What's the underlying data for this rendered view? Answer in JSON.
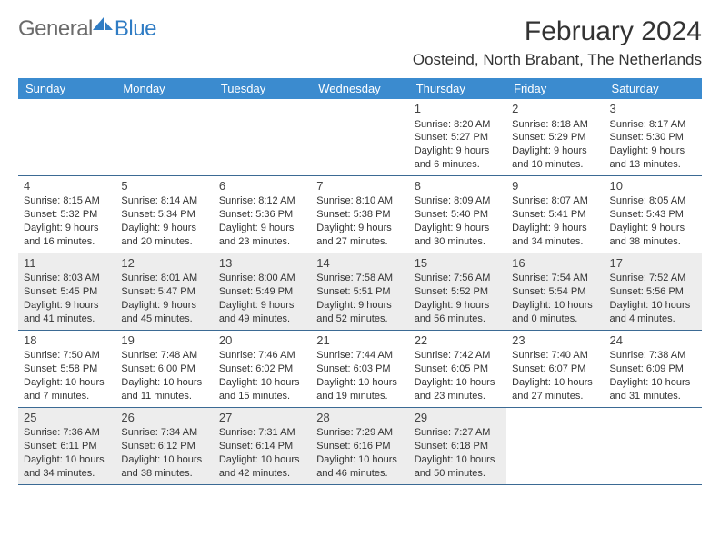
{
  "logo": {
    "text1": "General",
    "text2": "Blue",
    "icon_color": "#2f7cc4"
  },
  "title": "February 2024",
  "location": "Oosteind, North Brabant, The Netherlands",
  "colors": {
    "header_bg": "#3b8bcf",
    "border": "#3b6a94",
    "shade": "#ededed",
    "text": "#333333"
  },
  "days_of_week": [
    "Sunday",
    "Monday",
    "Tuesday",
    "Wednesday",
    "Thursday",
    "Friday",
    "Saturday"
  ],
  "weeks": [
    [
      {
        "empty": true
      },
      {
        "empty": true
      },
      {
        "empty": true
      },
      {
        "empty": true
      },
      {
        "n": "1",
        "sr": "Sunrise: 8:20 AM",
        "ss": "Sunset: 5:27 PM",
        "dl1": "Daylight: 9 hours",
        "dl2": "and 6 minutes."
      },
      {
        "n": "2",
        "sr": "Sunrise: 8:18 AM",
        "ss": "Sunset: 5:29 PM",
        "dl1": "Daylight: 9 hours",
        "dl2": "and 10 minutes."
      },
      {
        "n": "3",
        "sr": "Sunrise: 8:17 AM",
        "ss": "Sunset: 5:30 PM",
        "dl1": "Daylight: 9 hours",
        "dl2": "and 13 minutes."
      }
    ],
    [
      {
        "n": "4",
        "sr": "Sunrise: 8:15 AM",
        "ss": "Sunset: 5:32 PM",
        "dl1": "Daylight: 9 hours",
        "dl2": "and 16 minutes."
      },
      {
        "n": "5",
        "sr": "Sunrise: 8:14 AM",
        "ss": "Sunset: 5:34 PM",
        "dl1": "Daylight: 9 hours",
        "dl2": "and 20 minutes."
      },
      {
        "n": "6",
        "sr": "Sunrise: 8:12 AM",
        "ss": "Sunset: 5:36 PM",
        "dl1": "Daylight: 9 hours",
        "dl2": "and 23 minutes."
      },
      {
        "n": "7",
        "sr": "Sunrise: 8:10 AM",
        "ss": "Sunset: 5:38 PM",
        "dl1": "Daylight: 9 hours",
        "dl2": "and 27 minutes."
      },
      {
        "n": "8",
        "sr": "Sunrise: 8:09 AM",
        "ss": "Sunset: 5:40 PM",
        "dl1": "Daylight: 9 hours",
        "dl2": "and 30 minutes."
      },
      {
        "n": "9",
        "sr": "Sunrise: 8:07 AM",
        "ss": "Sunset: 5:41 PM",
        "dl1": "Daylight: 9 hours",
        "dl2": "and 34 minutes."
      },
      {
        "n": "10",
        "sr": "Sunrise: 8:05 AM",
        "ss": "Sunset: 5:43 PM",
        "dl1": "Daylight: 9 hours",
        "dl2": "and 38 minutes."
      }
    ],
    [
      {
        "n": "11",
        "sr": "Sunrise: 8:03 AM",
        "ss": "Sunset: 5:45 PM",
        "dl1": "Daylight: 9 hours",
        "dl2": "and 41 minutes."
      },
      {
        "n": "12",
        "sr": "Sunrise: 8:01 AM",
        "ss": "Sunset: 5:47 PM",
        "dl1": "Daylight: 9 hours",
        "dl2": "and 45 minutes."
      },
      {
        "n": "13",
        "sr": "Sunrise: 8:00 AM",
        "ss": "Sunset: 5:49 PM",
        "dl1": "Daylight: 9 hours",
        "dl2": "and 49 minutes."
      },
      {
        "n": "14",
        "sr": "Sunrise: 7:58 AM",
        "ss": "Sunset: 5:51 PM",
        "dl1": "Daylight: 9 hours",
        "dl2": "and 52 minutes."
      },
      {
        "n": "15",
        "sr": "Sunrise: 7:56 AM",
        "ss": "Sunset: 5:52 PM",
        "dl1": "Daylight: 9 hours",
        "dl2": "and 56 minutes."
      },
      {
        "n": "16",
        "sr": "Sunrise: 7:54 AM",
        "ss": "Sunset: 5:54 PM",
        "dl1": "Daylight: 10 hours",
        "dl2": "and 0 minutes."
      },
      {
        "n": "17",
        "sr": "Sunrise: 7:52 AM",
        "ss": "Sunset: 5:56 PM",
        "dl1": "Daylight: 10 hours",
        "dl2": "and 4 minutes."
      }
    ],
    [
      {
        "n": "18",
        "sr": "Sunrise: 7:50 AM",
        "ss": "Sunset: 5:58 PM",
        "dl1": "Daylight: 10 hours",
        "dl2": "and 7 minutes."
      },
      {
        "n": "19",
        "sr": "Sunrise: 7:48 AM",
        "ss": "Sunset: 6:00 PM",
        "dl1": "Daylight: 10 hours",
        "dl2": "and 11 minutes."
      },
      {
        "n": "20",
        "sr": "Sunrise: 7:46 AM",
        "ss": "Sunset: 6:02 PM",
        "dl1": "Daylight: 10 hours",
        "dl2": "and 15 minutes."
      },
      {
        "n": "21",
        "sr": "Sunrise: 7:44 AM",
        "ss": "Sunset: 6:03 PM",
        "dl1": "Daylight: 10 hours",
        "dl2": "and 19 minutes."
      },
      {
        "n": "22",
        "sr": "Sunrise: 7:42 AM",
        "ss": "Sunset: 6:05 PM",
        "dl1": "Daylight: 10 hours",
        "dl2": "and 23 minutes."
      },
      {
        "n": "23",
        "sr": "Sunrise: 7:40 AM",
        "ss": "Sunset: 6:07 PM",
        "dl1": "Daylight: 10 hours",
        "dl2": "and 27 minutes."
      },
      {
        "n": "24",
        "sr": "Sunrise: 7:38 AM",
        "ss": "Sunset: 6:09 PM",
        "dl1": "Daylight: 10 hours",
        "dl2": "and 31 minutes."
      }
    ],
    [
      {
        "n": "25",
        "sr": "Sunrise: 7:36 AM",
        "ss": "Sunset: 6:11 PM",
        "dl1": "Daylight: 10 hours",
        "dl2": "and 34 minutes."
      },
      {
        "n": "26",
        "sr": "Sunrise: 7:34 AM",
        "ss": "Sunset: 6:12 PM",
        "dl1": "Daylight: 10 hours",
        "dl2": "and 38 minutes."
      },
      {
        "n": "27",
        "sr": "Sunrise: 7:31 AM",
        "ss": "Sunset: 6:14 PM",
        "dl1": "Daylight: 10 hours",
        "dl2": "and 42 minutes."
      },
      {
        "n": "28",
        "sr": "Sunrise: 7:29 AM",
        "ss": "Sunset: 6:16 PM",
        "dl1": "Daylight: 10 hours",
        "dl2": "and 46 minutes."
      },
      {
        "n": "29",
        "sr": "Sunrise: 7:27 AM",
        "ss": "Sunset: 6:18 PM",
        "dl1": "Daylight: 10 hours",
        "dl2": "and 50 minutes."
      },
      {
        "empty": true
      },
      {
        "empty": true
      }
    ]
  ],
  "shaded_weeks": [
    2,
    4
  ]
}
